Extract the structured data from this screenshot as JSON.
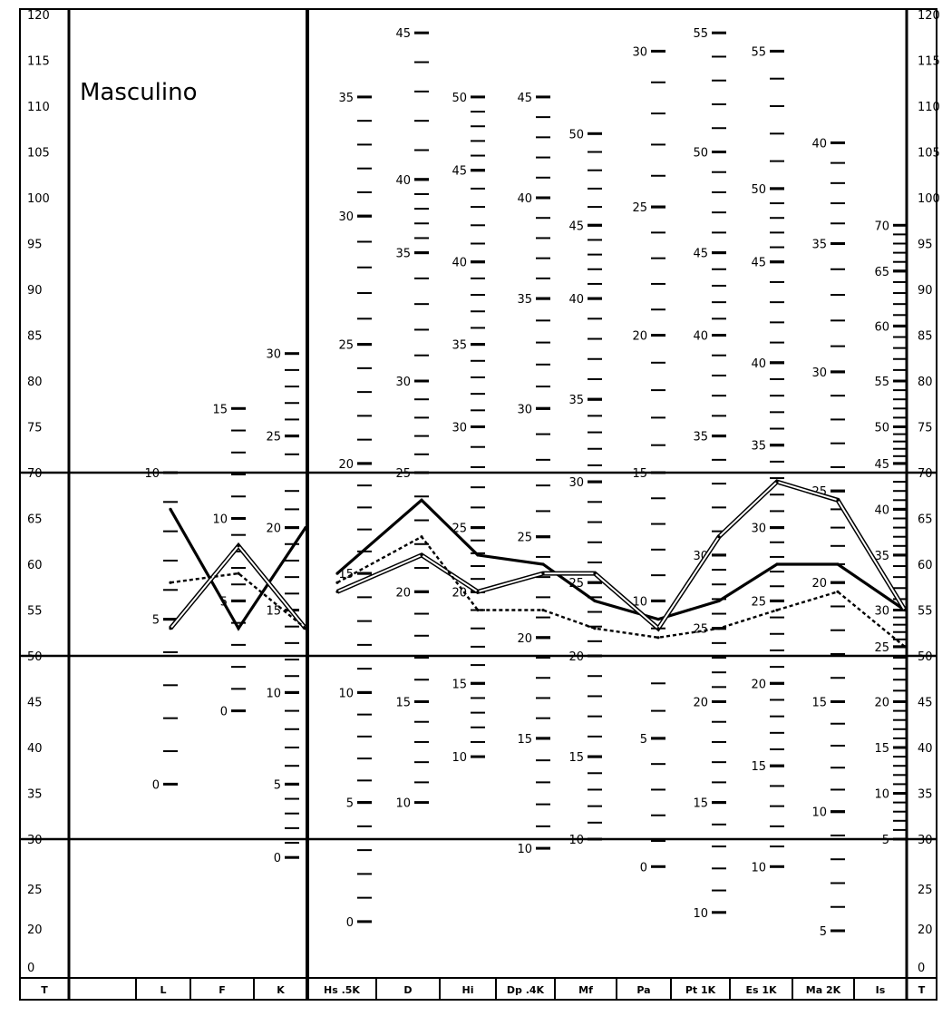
{
  "chart_data": {
    "type": "line",
    "title": "Masculino",
    "scale_labels": [
      "T",
      "L",
      "F",
      "K",
      "Hs .5K",
      "D",
      "Hi",
      "Dp .4K",
      "Mf",
      "Pa",
      "Pt 1K",
      "Es 1K",
      "Ma 2K",
      "Is",
      "T"
    ],
    "categories": [
      "L",
      "F",
      "K",
      "Hs .5K",
      "D",
      "Hi",
      "Dp .4K",
      "Mf",
      "Pa",
      "Pt 1K",
      "Es 1K",
      "Ma 2K",
      "Is"
    ],
    "y_axis": {
      "label": "T",
      "ticks": [
        0,
        20,
        25,
        30,
        35,
        40,
        45,
        50,
        55,
        60,
        65,
        70,
        75,
        80,
        85,
        90,
        95,
        100,
        105,
        110,
        115,
        120
      ]
    },
    "reference_lines_T": [
      70,
      50,
      30
    ],
    "raw_score_ticks": [
      {
        "scale": "L",
        "labels": [
          {
            "raw": 10,
            "t": 70
          },
          {
            "raw": 5,
            "t": 54
          },
          {
            "raw": 0,
            "t": 36
          }
        ]
      },
      {
        "scale": "F",
        "labels": [
          {
            "raw": 15,
            "t": 77
          },
          {
            "raw": 10,
            "t": 65
          },
          {
            "raw": 5,
            "t": 56
          },
          {
            "raw": 0,
            "t": 44
          }
        ]
      },
      {
        "scale": "K",
        "labels": [
          {
            "raw": 30,
            "t": 83
          },
          {
            "raw": 25,
            "t": 74
          },
          {
            "raw": 20,
            "t": 64
          },
          {
            "raw": 15,
            "t": 55
          },
          {
            "raw": 10,
            "t": 46
          },
          {
            "raw": 5,
            "t": 36
          },
          {
            "raw": 0,
            "t": 28
          }
        ]
      },
      {
        "scale": "Hs .5K",
        "labels": [
          {
            "raw": 35,
            "t": 111
          },
          {
            "raw": 30,
            "t": 98
          },
          {
            "raw": 25,
            "t": 84
          },
          {
            "raw": 20,
            "t": 71
          },
          {
            "raw": 15,
            "t": 59
          },
          {
            "raw": 10,
            "t": 46
          },
          {
            "raw": 5,
            "t": 34
          },
          {
            "raw": 0,
            "t": 21
          }
        ]
      },
      {
        "scale": "D",
        "labels": [
          {
            "raw": 45,
            "t": 118
          },
          {
            "raw": 40,
            "t": 102
          },
          {
            "raw": 35,
            "t": 94
          },
          {
            "raw": 30,
            "t": 80
          },
          {
            "raw": 25,
            "t": 70
          },
          {
            "raw": 20,
            "t": 57
          },
          {
            "raw": 15,
            "t": 45
          },
          {
            "raw": 10,
            "t": 34
          }
        ]
      },
      {
        "scale": "Hi",
        "labels": [
          {
            "raw": 50,
            "t": 111
          },
          {
            "raw": 45,
            "t": 103
          },
          {
            "raw": 40,
            "t": 93
          },
          {
            "raw": 35,
            "t": 84
          },
          {
            "raw": 30,
            "t": 75
          },
          {
            "raw": 25,
            "t": 64
          },
          {
            "raw": 20,
            "t": 57
          },
          {
            "raw": 15,
            "t": 47
          },
          {
            "raw": 10,
            "t": 39
          }
        ]
      },
      {
        "scale": "Dp .4K",
        "labels": [
          {
            "raw": 45,
            "t": 111
          },
          {
            "raw": 40,
            "t": 100
          },
          {
            "raw": 35,
            "t": 89
          },
          {
            "raw": 30,
            "t": 77
          },
          {
            "raw": 25,
            "t": 63
          },
          {
            "raw": 20,
            "t": 52
          },
          {
            "raw": 15,
            "t": 41
          },
          {
            "raw": 10,
            "t": 29
          }
        ]
      },
      {
        "scale": "Mf",
        "labels": [
          {
            "raw": 50,
            "t": 107
          },
          {
            "raw": 45,
            "t": 97
          },
          {
            "raw": 40,
            "t": 89
          },
          {
            "raw": 35,
            "t": 78
          },
          {
            "raw": 30,
            "t": 69
          },
          {
            "raw": 25,
            "t": 58
          },
          {
            "raw": 20,
            "t": 50
          },
          {
            "raw": 15,
            "t": 39
          },
          {
            "raw": 10,
            "t": 30
          }
        ]
      },
      {
        "scale": "Pa",
        "labels": [
          {
            "raw": 30,
            "t": 116
          },
          {
            "raw": 25,
            "t": 99
          },
          {
            "raw": 20,
            "t": 85
          },
          {
            "raw": 15,
            "t": 70
          },
          {
            "raw": 10,
            "t": 56
          },
          {
            "raw": 5,
            "t": 41
          },
          {
            "raw": 0,
            "t": 27
          }
        ]
      },
      {
        "scale": "Pt 1K",
        "labels": [
          {
            "raw": 55,
            "t": 118
          },
          {
            "raw": 50,
            "t": 105
          },
          {
            "raw": 45,
            "t": 94
          },
          {
            "raw": 40,
            "t": 85
          },
          {
            "raw": 35,
            "t": 74
          },
          {
            "raw": 30,
            "t": 61
          },
          {
            "raw": 25,
            "t": 53
          },
          {
            "raw": 20,
            "t": 45
          },
          {
            "raw": 15,
            "t": 34
          },
          {
            "raw": 10,
            "t": 22
          }
        ]
      },
      {
        "scale": "Es 1K",
        "labels": [
          {
            "raw": 55,
            "t": 116
          },
          {
            "raw": 50,
            "t": 101
          },
          {
            "raw": 45,
            "t": 93
          },
          {
            "raw": 40,
            "t": 82
          },
          {
            "raw": 35,
            "t": 73
          },
          {
            "raw": 30,
            "t": 64
          },
          {
            "raw": 25,
            "t": 56
          },
          {
            "raw": 20,
            "t": 47
          },
          {
            "raw": 15,
            "t": 38
          },
          {
            "raw": 10,
            "t": 27
          }
        ]
      },
      {
        "scale": "Ma 2K",
        "labels": [
          {
            "raw": 40,
            "t": 106
          },
          {
            "raw": 35,
            "t": 95
          },
          {
            "raw": 30,
            "t": 81
          },
          {
            "raw": 25,
            "t": 68
          },
          {
            "raw": 20,
            "t": 58
          },
          {
            "raw": 15,
            "t": 45
          },
          {
            "raw": 10,
            "t": 33
          },
          {
            "raw": 5,
            "t": 20
          }
        ]
      },
      {
        "scale": "Is",
        "labels": [
          {
            "raw": 70,
            "t": 97
          },
          {
            "raw": 65,
            "t": 92
          },
          {
            "raw": 60,
            "t": 86
          },
          {
            "raw": 55,
            "t": 80
          },
          {
            "raw": 50,
            "t": 75
          },
          {
            "raw": 45,
            "t": 71
          },
          {
            "raw": 40,
            "t": 66
          },
          {
            "raw": 35,
            "t": 61
          },
          {
            "raw": 30,
            "t": 55
          },
          {
            "raw": 25,
            "t": 51
          },
          {
            "raw": 20,
            "t": 45
          },
          {
            "raw": 15,
            "t": 40
          },
          {
            "raw": 10,
            "t": 35
          },
          {
            "raw": 5,
            "t": 30
          }
        ]
      }
    ],
    "series": [
      {
        "style": "solid",
        "values_validity": [
          66,
          53,
          64
        ],
        "values_clinical": [
          59,
          67,
          61,
          60,
          56,
          54,
          56,
          60,
          60,
          55
        ]
      },
      {
        "style": "double",
        "values_validity": [
          53,
          62,
          53
        ],
        "values_clinical": [
          57,
          61,
          57,
          59,
          59,
          53,
          63,
          69,
          67,
          55
        ]
      },
      {
        "style": "dotted",
        "values_validity": [
          58,
          59,
          53
        ],
        "values_clinical": [
          58,
          63,
          55,
          55,
          53,
          52,
          53,
          55,
          57,
          51
        ]
      }
    ]
  }
}
